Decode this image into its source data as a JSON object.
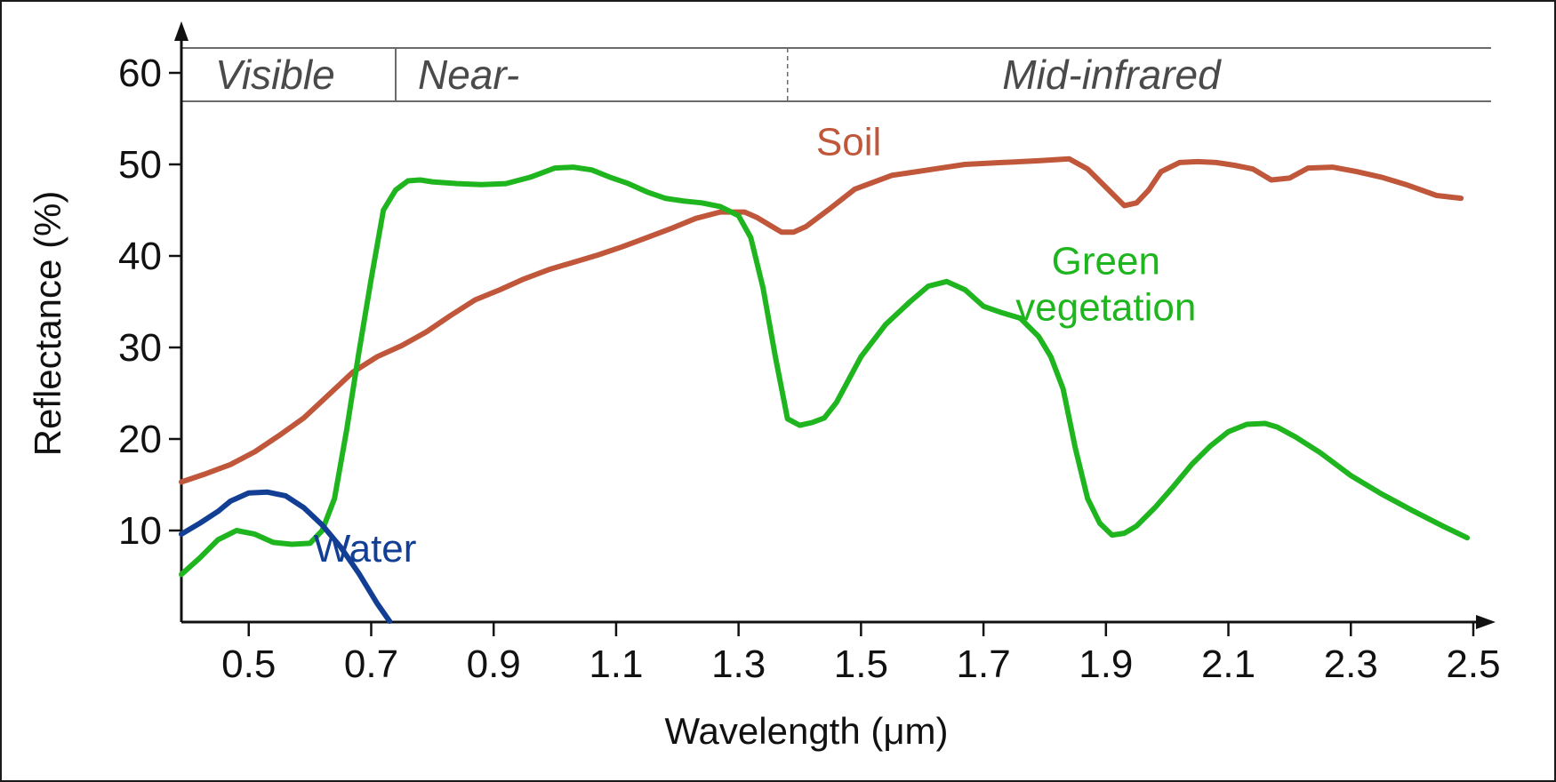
{
  "chart_data": {
    "type": "line",
    "title": "",
    "xlabel": "Wavelength (μm)",
    "ylabel": "Reflectance (%)",
    "xlim": [
      0.39,
      2.5
    ],
    "ylim": [
      0,
      60
    ],
    "x_ticks": [
      0.5,
      0.7,
      0.9,
      1.1,
      1.3,
      1.5,
      1.7,
      1.9,
      2.1,
      2.3,
      2.5
    ],
    "x_tick_labels": [
      "0.5",
      "0.7",
      "0.9",
      "1.1",
      "1.3",
      "1.5",
      "1.7",
      "1.9",
      "2.1",
      "2.3",
      "2.5"
    ],
    "y_ticks": [
      10,
      20,
      30,
      40,
      50,
      60
    ],
    "y_tick_labels": [
      "10",
      "20",
      "30",
      "40",
      "50",
      "60"
    ],
    "grid": false,
    "regions": [
      {
        "label": "Visible",
        "x_start": 0.39,
        "x_end": 0.74
      },
      {
        "label": "Near-",
        "x_start": 0.74,
        "x_end": 1.38
      },
      {
        "label": "Mid-infrared",
        "x_start": 1.38,
        "x_end": 2.5
      }
    ],
    "series": [
      {
        "name": "Soil",
        "color": "#c0573a",
        "label_pos": [
          1.48,
          51
        ],
        "x": [
          0.39,
          0.43,
          0.47,
          0.51,
          0.55,
          0.59,
          0.63,
          0.67,
          0.71,
          0.75,
          0.79,
          0.83,
          0.87,
          0.91,
          0.95,
          0.99,
          1.03,
          1.07,
          1.11,
          1.15,
          1.19,
          1.23,
          1.27,
          1.31,
          1.33,
          1.35,
          1.37,
          1.39,
          1.41,
          1.45,
          1.49,
          1.55,
          1.61,
          1.67,
          1.73,
          1.79,
          1.84,
          1.87,
          1.9,
          1.93,
          1.95,
          1.97,
          1.99,
          2.02,
          2.05,
          2.08,
          2.11,
          2.14,
          2.17,
          2.2,
          2.23,
          2.27,
          2.31,
          2.35,
          2.39,
          2.44,
          2.48
        ],
        "y": [
          15.3,
          16.2,
          17.2,
          18.6,
          20.4,
          22.3,
          24.8,
          27.3,
          29.0,
          30.2,
          31.7,
          33.5,
          35.2,
          36.3,
          37.5,
          38.5,
          39.3,
          40.1,
          41.0,
          42.0,
          43.0,
          44.1,
          44.8,
          44.8,
          44.2,
          43.4,
          42.6,
          42.6,
          43.2,
          45.2,
          47.3,
          48.8,
          49.4,
          50.0,
          50.2,
          50.4,
          50.6,
          49.5,
          47.5,
          45.5,
          45.8,
          47.2,
          49.2,
          50.2,
          50.3,
          50.2,
          49.9,
          49.5,
          48.3,
          48.5,
          49.6,
          49.7,
          49.2,
          48.6,
          47.8,
          46.6,
          46.3
        ]
      },
      {
        "name": "Green vegetation",
        "color": "#1fb51f",
        "label_pos": [
          1.9,
          35.5
        ],
        "x": [
          0.39,
          0.42,
          0.45,
          0.48,
          0.51,
          0.54,
          0.57,
          0.6,
          0.62,
          0.64,
          0.66,
          0.68,
          0.7,
          0.72,
          0.74,
          0.76,
          0.78,
          0.8,
          0.84,
          0.88,
          0.92,
          0.96,
          1.0,
          1.03,
          1.06,
          1.09,
          1.12,
          1.15,
          1.18,
          1.21,
          1.24,
          1.27,
          1.3,
          1.32,
          1.34,
          1.36,
          1.38,
          1.4,
          1.42,
          1.44,
          1.46,
          1.48,
          1.5,
          1.54,
          1.58,
          1.61,
          1.64,
          1.67,
          1.7,
          1.73,
          1.76,
          1.79,
          1.81,
          1.83,
          1.85,
          1.87,
          1.89,
          1.91,
          1.93,
          1.95,
          1.98,
          2.01,
          2.04,
          2.07,
          2.1,
          2.13,
          2.16,
          2.18,
          2.21,
          2.25,
          2.3,
          2.35,
          2.4,
          2.45,
          2.49
        ],
        "y": [
          5.2,
          7.0,
          9.0,
          10.0,
          9.6,
          8.7,
          8.5,
          8.6,
          10.0,
          13.5,
          21.0,
          29.5,
          37.5,
          45.0,
          47.2,
          48.2,
          48.3,
          48.1,
          47.9,
          47.8,
          47.9,
          48.6,
          49.6,
          49.7,
          49.4,
          48.6,
          47.9,
          47.0,
          46.3,
          46.0,
          45.8,
          45.4,
          44.4,
          42.0,
          36.5,
          29.0,
          22.2,
          21.5,
          21.8,
          22.3,
          24.0,
          26.5,
          29.0,
          32.5,
          35.0,
          36.7,
          37.2,
          36.3,
          34.5,
          33.8,
          33.2,
          31.2,
          29.0,
          25.5,
          19.0,
          13.5,
          10.8,
          9.5,
          9.7,
          10.5,
          12.5,
          14.8,
          17.2,
          19.2,
          20.8,
          21.6,
          21.7,
          21.3,
          20.2,
          18.5,
          16.0,
          14.0,
          12.2,
          10.5,
          9.2
        ]
      },
      {
        "name": "Water",
        "color": "#123f94",
        "label_pos": [
          0.69,
          6.6
        ],
        "x": [
          0.39,
          0.42,
          0.45,
          0.47,
          0.5,
          0.53,
          0.56,
          0.59,
          0.62,
          0.65,
          0.68,
          0.71,
          0.73
        ],
        "y": [
          9.6,
          10.8,
          12.1,
          13.2,
          14.1,
          14.2,
          13.8,
          12.5,
          10.6,
          8.2,
          5.3,
          2.0,
          0.1
        ]
      }
    ]
  }
}
